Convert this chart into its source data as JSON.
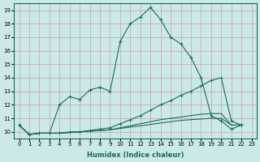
{
  "xlabel": "Humidex (Indice chaleur)",
  "xlim": [
    -0.5,
    23.5
  ],
  "ylim": [
    9.5,
    19.5
  ],
  "yticks": [
    10,
    11,
    12,
    13,
    14,
    15,
    16,
    17,
    18,
    19
  ],
  "xticks": [
    0,
    1,
    2,
    3,
    4,
    5,
    6,
    7,
    8,
    9,
    10,
    11,
    12,
    13,
    14,
    15,
    16,
    17,
    18,
    19,
    20,
    21,
    22,
    23
  ],
  "background_color": "#cce9e9",
  "grid_color": "#c8a0a0",
  "line_color": "#1a6b5a",
  "line1_x": [
    0,
    1,
    2,
    3,
    4,
    5,
    6,
    7,
    8,
    9,
    10,
    11,
    12,
    13,
    14,
    15,
    16,
    17,
    18,
    19,
    20,
    21,
    22
  ],
  "line1_y": [
    10.5,
    9.8,
    9.9,
    9.9,
    12.0,
    12.6,
    12.4,
    13.1,
    13.3,
    13.0,
    16.7,
    18.0,
    18.5,
    19.2,
    18.3,
    17.0,
    16.5,
    15.5,
    14.0,
    11.2,
    10.8,
    10.2,
    10.5
  ],
  "line2_x": [
    0,
    1,
    2,
    3,
    4,
    5,
    6,
    7,
    8,
    9,
    10,
    11,
    12,
    13,
    14,
    15,
    16,
    17,
    18,
    19,
    20,
    21,
    22
  ],
  "line2_y": [
    10.5,
    9.8,
    9.9,
    9.9,
    9.9,
    10.0,
    10.0,
    10.1,
    10.2,
    10.3,
    10.6,
    10.9,
    11.2,
    11.6,
    12.0,
    12.3,
    12.7,
    13.0,
    13.4,
    13.8,
    14.0,
    10.8,
    10.5
  ],
  "line3_x": [
    0,
    1,
    2,
    3,
    4,
    5,
    6,
    7,
    8,
    9,
    10,
    11,
    12,
    13,
    14,
    15,
    16,
    17,
    18,
    19,
    20,
    21,
    22
  ],
  "line3_y": [
    10.5,
    9.8,
    9.9,
    9.9,
    9.9,
    9.95,
    10.0,
    10.05,
    10.1,
    10.15,
    10.3,
    10.45,
    10.6,
    10.75,
    10.9,
    11.0,
    11.1,
    11.2,
    11.3,
    11.35,
    11.35,
    10.5,
    10.5
  ],
  "line4_x": [
    0,
    1,
    2,
    3,
    4,
    5,
    6,
    7,
    8,
    9,
    10,
    11,
    12,
    13,
    14,
    15,
    16,
    17,
    18,
    19,
    20,
    21,
    22
  ],
  "line4_y": [
    10.5,
    9.8,
    9.9,
    9.9,
    9.9,
    9.95,
    10.0,
    10.05,
    10.1,
    10.15,
    10.25,
    10.35,
    10.45,
    10.55,
    10.65,
    10.75,
    10.85,
    10.9,
    10.95,
    11.0,
    11.0,
    10.5,
    10.5
  ]
}
